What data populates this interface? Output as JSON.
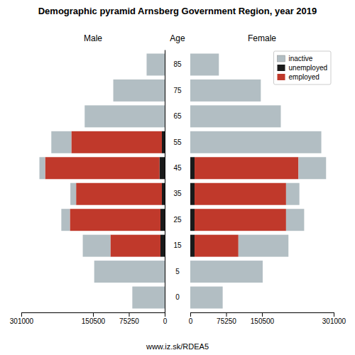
{
  "title": "Demographic pyramid Arnsberg Government Region, year 2019",
  "annotations": [
    "Age",
    "www.iz.sk/RDEA5"
  ],
  "chart_data": [
    {
      "type": "bar",
      "orientation": "horizontal",
      "stacked": true,
      "title": "Male",
      "categories": [
        "85",
        "75",
        "65",
        "55",
        "45",
        "35",
        "25",
        "15",
        "5",
        "0"
      ],
      "series": [
        {
          "color": "#b2bec3",
          "values": [
            38000,
            108000,
            168000,
            42000,
            12000,
            12000,
            18000,
            58000,
            148000,
            68000
          ]
        },
        {
          "color": "#1a1a1a",
          "values": [
            0,
            0,
            0,
            6000,
            11000,
            6000,
            9000,
            9000,
            0,
            0
          ]
        },
        {
          "color": "#c0392b",
          "values": [
            0,
            0,
            0,
            190000,
            240000,
            180000,
            190000,
            105000,
            0,
            0
          ]
        }
      ],
      "xlim": [
        301000,
        0
      ],
      "xticks": [
        301000,
        150500,
        75250,
        0
      ]
    },
    {
      "type": "bar",
      "orientation": "horizontal",
      "stacked": true,
      "title": "Female",
      "categories": [
        null,
        null,
        null,
        null,
        null,
        null,
        null,
        null,
        null,
        null
      ],
      "tick_labels": "x",
      "legend": "upper right",
      "series": [
        {
          "name": "inactive",
          "color": "#b2bec3",
          "values": [
            60000,
            148000,
            190000,
            275000,
            58000,
            28000,
            38000,
            105000,
            152000,
            68000
          ]
        },
        {
          "name": "unemployed",
          "color": "#1a1a1a",
          "values": [
            0,
            0,
            0,
            0,
            9000,
            9000,
            9000,
            9000,
            0,
            0
          ]
        },
        {
          "name": "employed",
          "color": "#c0392b",
          "values": [
            0,
            0,
            0,
            0,
            218000,
            192000,
            192000,
            92000,
            0,
            0
          ]
        }
      ],
      "xlim": [
        0,
        301000
      ],
      "xticks": [
        0,
        75250,
        150500,
        301000
      ]
    }
  ]
}
